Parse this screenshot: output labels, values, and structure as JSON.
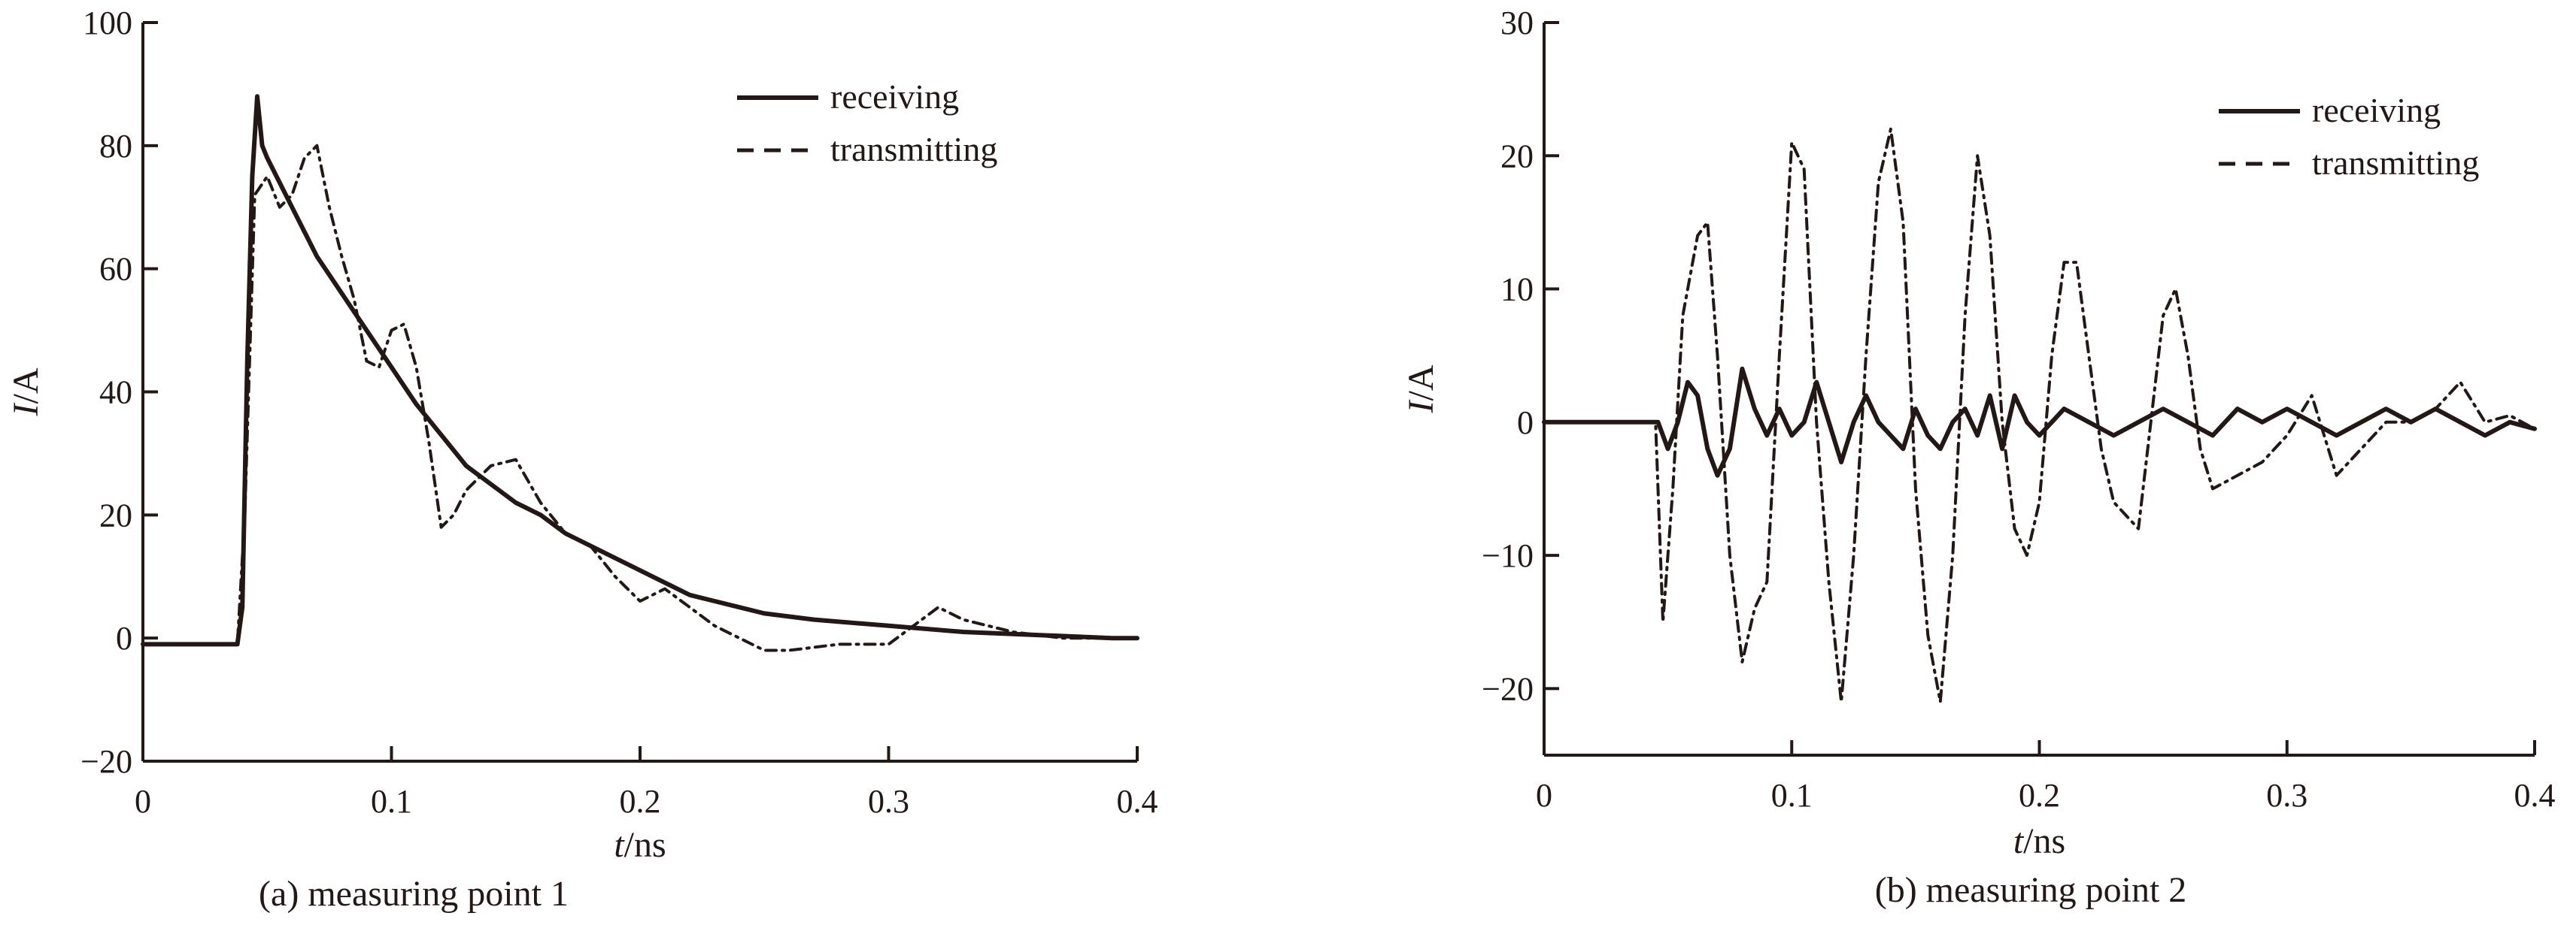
{
  "chart_data": [
    {
      "type": "line",
      "caption": "(a) measuring point 1",
      "xlabel_italic": "t",
      "xlabel_unit": "/ns",
      "ylabel_italic": "I",
      "ylabel_unit": "/A",
      "xlim": [
        0,
        0.4
      ],
      "ylim": [
        -20,
        100
      ],
      "xticks": [
        0,
        0.1,
        0.2,
        0.3,
        0.4
      ],
      "xtick_labels": [
        "0",
        "0.1",
        "0.2",
        "0.3",
        "0.4"
      ],
      "yticks": [
        -20,
        0,
        20,
        40,
        60,
        80,
        100
      ],
      "ytick_labels": [
        "−20",
        "0",
        "20",
        "40",
        "60",
        "80",
        "100"
      ],
      "grid": false,
      "legend_position": "top-right",
      "series": [
        {
          "name": "receiving",
          "style": "solid",
          "x": [
            0,
            0.01,
            0.02,
            0.03,
            0.038,
            0.04,
            0.042,
            0.044,
            0.046,
            0.048,
            0.05,
            0.055,
            0.06,
            0.065,
            0.07,
            0.08,
            0.09,
            0.1,
            0.11,
            0.12,
            0.13,
            0.14,
            0.15,
            0.16,
            0.17,
            0.18,
            0.19,
            0.2,
            0.21,
            0.22,
            0.23,
            0.24,
            0.25,
            0.27,
            0.3,
            0.33,
            0.36,
            0.39,
            0.4
          ],
          "y": [
            -1,
            -1,
            -1,
            -1,
            -1,
            5,
            45,
            75,
            88,
            80,
            78,
            74,
            70,
            66,
            62,
            56,
            50,
            44,
            38,
            33,
            28,
            25,
            22,
            20,
            17,
            15,
            13,
            11,
            9,
            7,
            6,
            5,
            4,
            3,
            2,
            1,
            0.5,
            0,
            0
          ]
        },
        {
          "name": "transmitting",
          "style": "dashed",
          "x": [
            0,
            0.02,
            0.038,
            0.041,
            0.045,
            0.05,
            0.055,
            0.06,
            0.065,
            0.07,
            0.075,
            0.08,
            0.085,
            0.09,
            0.095,
            0.1,
            0.105,
            0.11,
            0.115,
            0.12,
            0.125,
            0.13,
            0.14,
            0.15,
            0.16,
            0.17,
            0.18,
            0.19,
            0.2,
            0.21,
            0.22,
            0.23,
            0.24,
            0.25,
            0.26,
            0.28,
            0.3,
            0.31,
            0.32,
            0.33,
            0.35,
            0.37,
            0.4
          ],
          "y": [
            -1,
            -1,
            -1,
            20,
            72,
            75,
            70,
            72,
            78,
            80,
            70,
            62,
            55,
            45,
            44,
            50,
            51,
            44,
            32,
            18,
            20,
            24,
            28,
            29,
            22,
            17,
            15,
            10,
            6,
            8,
            5,
            2,
            0,
            -2,
            -2,
            -1,
            -1,
            2,
            5,
            3,
            1,
            0,
            0
          ]
        }
      ]
    },
    {
      "type": "line",
      "caption": "(b) measuring point 2",
      "xlabel_italic": "t",
      "xlabel_unit": "/ns",
      "ylabel_italic": "I",
      "ylabel_unit": "/A",
      "xlim": [
        0,
        0.4
      ],
      "ylim": [
        -25,
        30
      ],
      "xticks": [
        0,
        0.1,
        0.2,
        0.3,
        0.4
      ],
      "xtick_labels": [
        "0",
        "0.1",
        "0.2",
        "0.3",
        "0.4"
      ],
      "yticks": [
        -20,
        -10,
        0,
        10,
        20,
        30
      ],
      "ytick_labels": [
        "−20",
        "−10",
        "0",
        "10",
        "20",
        "30"
      ],
      "grid": false,
      "legend_position": "top-right",
      "series": [
        {
          "name": "receiving",
          "style": "solid",
          "x": [
            0,
            0.02,
            0.046,
            0.05,
            0.054,
            0.058,
            0.062,
            0.066,
            0.07,
            0.075,
            0.08,
            0.085,
            0.09,
            0.095,
            0.1,
            0.105,
            0.11,
            0.115,
            0.12,
            0.125,
            0.13,
            0.135,
            0.14,
            0.145,
            0.15,
            0.155,
            0.16,
            0.165,
            0.17,
            0.175,
            0.18,
            0.185,
            0.19,
            0.195,
            0.2,
            0.205,
            0.21,
            0.22,
            0.23,
            0.24,
            0.25,
            0.26,
            0.27,
            0.28,
            0.29,
            0.3,
            0.31,
            0.32,
            0.33,
            0.34,
            0.35,
            0.36,
            0.37,
            0.38,
            0.39,
            0.4
          ],
          "y": [
            0,
            0,
            0,
            -2,
            0,
            3,
            2,
            -2,
            -4,
            -2,
            4,
            1,
            -1,
            1,
            -1,
            0,
            3,
            0,
            -3,
            0,
            2,
            0,
            -1,
            -2,
            1,
            -1,
            -2,
            0,
            1,
            -1,
            2,
            -2,
            2,
            0,
            -1,
            0,
            1,
            0,
            -1,
            0,
            1,
            0,
            -1,
            1,
            0,
            1,
            0,
            -1,
            0,
            1,
            0,
            1,
            0,
            -1,
            0,
            -0.5
          ]
        },
        {
          "name": "transmitting",
          "style": "dashed",
          "x": [
            0,
            0.02,
            0.045,
            0.048,
            0.052,
            0.056,
            0.062,
            0.066,
            0.07,
            0.075,
            0.08,
            0.085,
            0.09,
            0.095,
            0.1,
            0.105,
            0.11,
            0.115,
            0.12,
            0.125,
            0.13,
            0.135,
            0.14,
            0.145,
            0.15,
            0.155,
            0.16,
            0.165,
            0.17,
            0.175,
            0.18,
            0.185,
            0.19,
            0.195,
            0.2,
            0.205,
            0.21,
            0.215,
            0.22,
            0.225,
            0.23,
            0.235,
            0.24,
            0.245,
            0.25,
            0.255,
            0.26,
            0.265,
            0.27,
            0.28,
            0.29,
            0.3,
            0.31,
            0.32,
            0.33,
            0.34,
            0.35,
            0.36,
            0.37,
            0.38,
            0.39,
            0.4
          ],
          "y": [
            0,
            0,
            0,
            -15,
            -5,
            8,
            14,
            15,
            5,
            -10,
            -18,
            -14,
            -12,
            5,
            21,
            19,
            0,
            -12,
            -21,
            -10,
            5,
            18,
            22,
            15,
            -5,
            -16,
            -21,
            -10,
            8,
            20,
            14,
            0,
            -8,
            -10,
            -6,
            5,
            12,
            12,
            5,
            -2,
            -6,
            -7,
            -8,
            0,
            8,
            10,
            5,
            -2,
            -5,
            -4,
            -3,
            -1,
            2,
            -4,
            -2,
            0,
            0,
            1,
            3,
            0,
            0.5,
            -0.5
          ]
        }
      ]
    }
  ]
}
